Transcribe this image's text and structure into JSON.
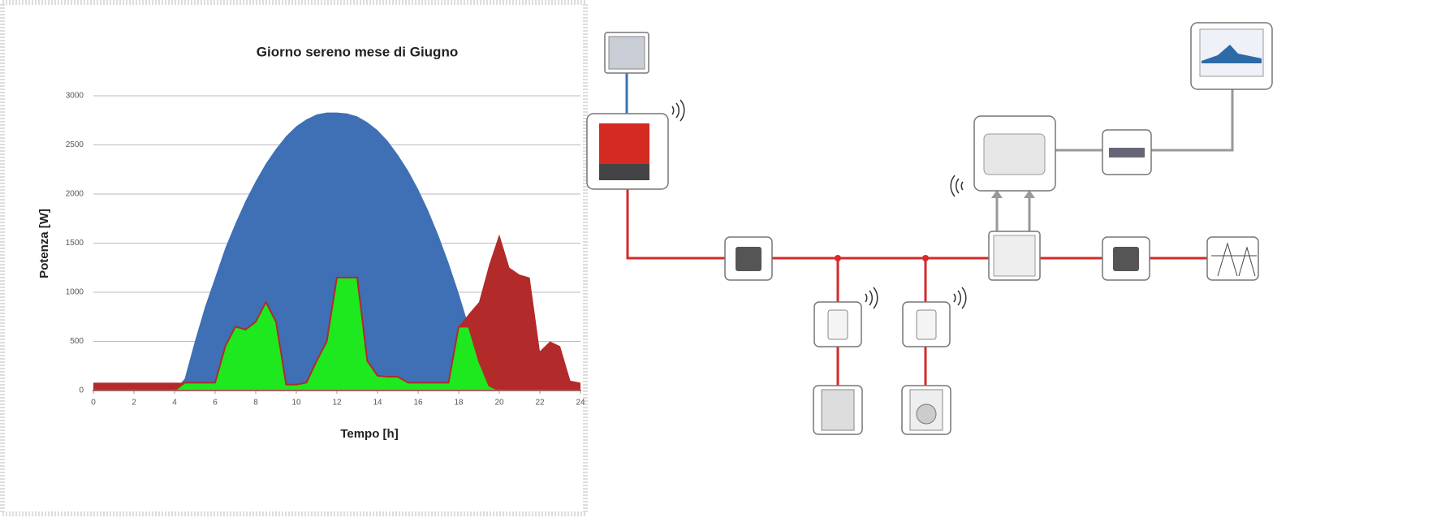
{
  "chart_data": {
    "type": "area",
    "title": "Giorno sereno mese di Giugno",
    "x_label": "Tempo [h]",
    "y_label": "Potenza [W]",
    "x": [
      0,
      0.5,
      1,
      1.5,
      2,
      2.5,
      3,
      3.5,
      4,
      4.5,
      5,
      5.5,
      6,
      6.5,
      7,
      7.5,
      8,
      8.5,
      9,
      9.5,
      10,
      10.5,
      11,
      11.5,
      12,
      12.5,
      13,
      13.5,
      14,
      14.5,
      15,
      15.5,
      16,
      16.5,
      17,
      17.5,
      18,
      18.5,
      19,
      19.5,
      20,
      20.5,
      21,
      21.5,
      22,
      22.5,
      23,
      23.5,
      24
    ],
    "series": [
      {
        "color": "#3f6fb5",
        "values": [
          0,
          0,
          0,
          0,
          0,
          0,
          0,
          0,
          0,
          120,
          500,
          850,
          1150,
          1450,
          1700,
          1930,
          2130,
          2310,
          2460,
          2590,
          2690,
          2760,
          2810,
          2830,
          2830,
          2820,
          2790,
          2730,
          2650,
          2540,
          2400,
          2240,
          2050,
          1830,
          1580,
          1300,
          990,
          650,
          300,
          50,
          0,
          0,
          0,
          0,
          0,
          0,
          0,
          0,
          0
        ]
      },
      {
        "color": "#b22a2a",
        "values": [
          80,
          80,
          80,
          80,
          80,
          80,
          80,
          80,
          80,
          80,
          80,
          80,
          80,
          450,
          650,
          620,
          700,
          900,
          700,
          60,
          60,
          80,
          300,
          500,
          1150,
          1150,
          1150,
          300,
          150,
          140,
          140,
          80,
          80,
          80,
          80,
          80,
          650,
          780,
          900,
          1280,
          1590,
          1250,
          1180,
          1150,
          400,
          500,
          450,
          100,
          80
        ]
      },
      {
        "color": "#1ee81e",
        "values": [
          0,
          0,
          0,
          0,
          0,
          0,
          0,
          0,
          0,
          80,
          80,
          80,
          80,
          450,
          650,
          620,
          700,
          900,
          700,
          60,
          60,
          80,
          300,
          500,
          1150,
          1150,
          1150,
          300,
          150,
          140,
          140,
          80,
          80,
          80,
          80,
          80,
          650,
          650,
          300,
          50,
          0,
          0,
          0,
          0,
          0,
          0,
          0,
          0,
          0
        ]
      }
    ],
    "xlim": [
      0,
      24
    ],
    "xticks": [
      0,
      2,
      4,
      6,
      8,
      10,
      12,
      14,
      16,
      18,
      20,
      22,
      24
    ],
    "ylim": [
      0,
      3000
    ],
    "yticks": [
      0,
      500,
      1000,
      1500,
      2000,
      2500,
      3000
    ],
    "grid": true
  }
}
